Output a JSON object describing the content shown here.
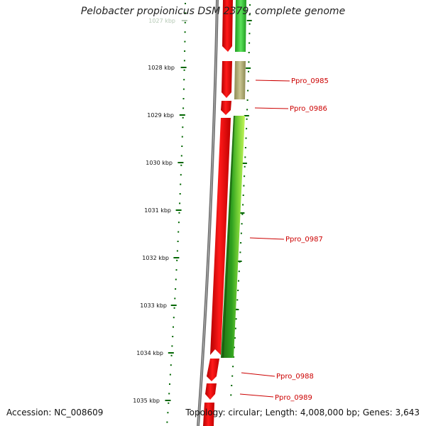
{
  "title": "Pelobacter propionicus DSM 2379, complete genome",
  "footer": {
    "accession": "Accession: NC_008609",
    "summary": "Topology: circular; Length: 4,008,000 bp; Genes: 3,643"
  },
  "ruler": {
    "labels": [
      "1027 kbp",
      "1028 kbp",
      "1029 kbp",
      "1030 kbp",
      "1031 kbp",
      "1032 kbp",
      "1033 kbp",
      "1034 kbp",
      "1035 kbp"
    ]
  },
  "genes": [
    {
      "label": "",
      "color": "#ff0000"
    },
    {
      "label": "Ppro_0985",
      "color": "#ff0000"
    },
    {
      "label": "Ppro_0986",
      "color": "#ff0000"
    },
    {
      "label": "Ppro_0987",
      "color": "#ff0000"
    },
    {
      "label": "Ppro_0988",
      "color": "#ff0000"
    },
    {
      "label": "Ppro_0989",
      "color": "#ff0000"
    }
  ],
  "features": [
    {
      "label": "",
      "colors": [
        "#1f9b1f",
        "#5be35b",
        "#1f9b1f"
      ]
    },
    {
      "label": "Ppro_0985",
      "colors": [
        "#8d8a52",
        "#c9c591",
        "#8d8a52"
      ]
    },
    {
      "label": "Ppro_0987",
      "colors": [
        "#1e6b12",
        "#2fa01f",
        "#9be83c"
      ]
    }
  ],
  "colors": {
    "backbone": "#808080",
    "label_text": "#cc0000",
    "ruler_tick": "#006600",
    "ruler_text": "#111111"
  }
}
